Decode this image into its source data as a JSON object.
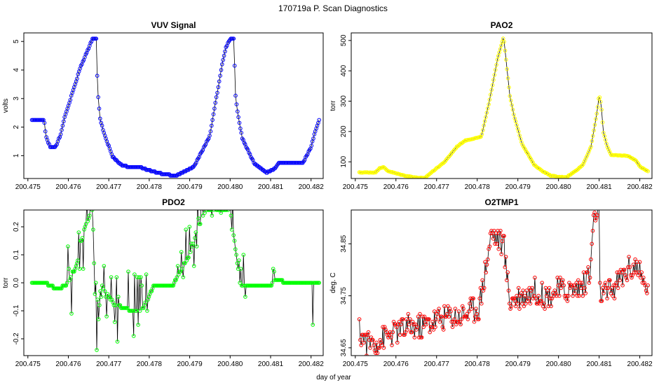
{
  "figure": {
    "title": "170719a   P. Scan Diagnostics",
    "xlabel": "day of year"
  },
  "chart_data": [
    {
      "type": "line",
      "title": "VUV Signal",
      "xlabel": "",
      "ylabel": "volts",
      "xlim": [
        200.4749,
        200.4823
      ],
      "ylim": [
        0.2,
        5.3
      ],
      "xticks": [
        "200.475",
        "200.476",
        "200.477",
        "200.478",
        "200.479",
        "200.480",
        "200.481",
        "200.482"
      ],
      "xtick_values": [
        200.475,
        200.476,
        200.477,
        200.478,
        200.479,
        200.48,
        200.481,
        200.482
      ],
      "yticks": [
        "1",
        "2",
        "3",
        "4",
        "5"
      ],
      "ytick_values": [
        1,
        2,
        3,
        4,
        5
      ],
      "marker_color": "#0000ff",
      "n_points": 300,
      "keypoints": [
        [
          200.4751,
          2.27
        ],
        [
          200.4754,
          2.27
        ],
        [
          200.47545,
          1.65
        ],
        [
          200.47555,
          1.3
        ],
        [
          200.47568,
          1.3
        ],
        [
          200.4758,
          1.7
        ],
        [
          200.4759,
          2.3
        ],
        [
          200.4763,
          4.1
        ],
        [
          200.4766,
          5.1
        ],
        [
          200.4767,
          5.1
        ],
        [
          200.47672,
          3.35
        ],
        [
          200.47678,
          2.33
        ],
        [
          200.4769,
          1.7
        ],
        [
          200.4771,
          0.95
        ],
        [
          200.4773,
          0.68
        ],
        [
          200.4775,
          0.6
        ],
        [
          200.4778,
          0.58
        ],
        [
          200.4782,
          0.4
        ],
        [
          200.47865,
          0.29
        ],
        [
          200.4791,
          0.6
        ],
        [
          200.4795,
          1.7
        ],
        [
          200.4798,
          4.2
        ],
        [
          200.4799,
          4.8
        ],
        [
          200.48,
          5.1
        ],
        [
          200.4801,
          5.1
        ],
        [
          200.48012,
          3.25
        ],
        [
          200.48018,
          2.55
        ],
        [
          200.4803,
          1.6
        ],
        [
          200.4806,
          0.72
        ],
        [
          200.4809,
          0.4
        ],
        [
          200.4811,
          0.55
        ],
        [
          200.4812,
          0.75
        ],
        [
          200.4815,
          0.75
        ],
        [
          200.4818,
          0.75
        ],
        [
          200.482,
          1.3
        ],
        [
          200.4821,
          1.85
        ],
        [
          200.4822,
          2.25
        ]
      ]
    },
    {
      "type": "line",
      "title": "PAO2",
      "xlabel": "",
      "ylabel": "torr",
      "xlim": [
        200.4749,
        200.4823
      ],
      "ylim": [
        45,
        525
      ],
      "xticks": [
        "200.475",
        "200.476",
        "200.477",
        "200.478",
        "200.479",
        "200.480",
        "200.481",
        "200.482"
      ],
      "xtick_values": [
        200.475,
        200.476,
        200.477,
        200.478,
        200.479,
        200.48,
        200.481,
        200.482
      ],
      "yticks": [
        "100",
        "200",
        "300",
        "400",
        "500"
      ],
      "ytick_values": [
        100,
        200,
        300,
        400,
        500
      ],
      "marker_color": "#ffff00",
      "n_points": 300,
      "keypoints": [
        [
          200.4751,
          65
        ],
        [
          200.4755,
          65
        ],
        [
          200.4756,
          80
        ],
        [
          200.4757,
          82
        ],
        [
          200.4758,
          70
        ],
        [
          200.476,
          62
        ],
        [
          200.4762,
          55
        ],
        [
          200.4765,
          48
        ],
        [
          200.4767,
          46
        ],
        [
          200.4769,
          68
        ],
        [
          200.4772,
          100
        ],
        [
          200.4775,
          150
        ],
        [
          200.4777,
          170
        ],
        [
          200.47795,
          178
        ],
        [
          200.4781,
          182
        ],
        [
          200.4783,
          300
        ],
        [
          200.4785,
          440
        ],
        [
          200.47865,
          512
        ],
        [
          200.4788,
          320
        ],
        [
          200.4789,
          255
        ],
        [
          200.4791,
          160
        ],
        [
          200.4794,
          90
        ],
        [
          200.4796,
          70
        ],
        [
          200.4798,
          55
        ],
        [
          200.48,
          50
        ],
        [
          200.4802,
          50
        ],
        [
          200.4804,
          68
        ],
        [
          200.4806,
          90
        ],
        [
          200.4808,
          150
        ],
        [
          200.48095,
          265
        ],
        [
          200.481,
          320
        ],
        [
          200.48105,
          290
        ],
        [
          200.4811,
          200
        ],
        [
          200.4812,
          150
        ],
        [
          200.4813,
          122
        ],
        [
          200.4817,
          120
        ],
        [
          200.4819,
          105
        ],
        [
          200.482,
          85
        ],
        [
          200.4822,
          68
        ]
      ]
    },
    {
      "type": "line",
      "title": "PDO2",
      "xlabel": "",
      "ylabel": "torr",
      "xlim": [
        200.4749,
        200.4823
      ],
      "ylim": [
        -0.26,
        0.26
      ],
      "xticks": [
        "200.475",
        "200.476",
        "200.477",
        "200.478",
        "200.479",
        "200.480",
        "200.481",
        "200.482"
      ],
      "xtick_values": [
        200.475,
        200.476,
        200.477,
        200.478,
        200.479,
        200.48,
        200.481,
        200.482
      ],
      "yticks": [
        "-0.2",
        "-0.1",
        "0.0",
        "0.1",
        "0.2"
      ],
      "ytick_values": [
        -0.2,
        -0.1,
        0.0,
        0.1,
        0.2
      ],
      "marker_color": "#00ff00",
      "n_points": 320,
      "keypoints": [
        [
          200.4751,
          -0.005
        ],
        [
          200.4755,
          -0.005
        ],
        [
          200.4757,
          -0.02
        ],
        [
          200.4758,
          -0.02
        ],
        [
          200.476,
          0.0
        ],
        [
          200.4762,
          0.06
        ],
        [
          200.4764,
          0.2
        ],
        [
          200.4766,
          0.26
        ],
        [
          200.47665,
          0.0
        ],
        [
          200.4767,
          -0.25
        ],
        [
          200.4768,
          -0.005
        ],
        [
          200.477,
          -0.05
        ],
        [
          200.4772,
          -0.08
        ],
        [
          200.4774,
          -0.09
        ],
        [
          200.4776,
          -0.1
        ],
        [
          200.4778,
          -0.1
        ],
        [
          200.478,
          -0.05
        ],
        [
          200.4781,
          -0.01
        ],
        [
          200.4785,
          -0.01
        ],
        [
          200.4786,
          -0.005
        ],
        [
          200.4788,
          0.05
        ],
        [
          200.479,
          0.1
        ],
        [
          200.4792,
          0.2
        ],
        [
          200.4794,
          0.26
        ],
        [
          200.4796,
          0.26
        ],
        [
          200.4798,
          0.26
        ],
        [
          200.48,
          0.26
        ],
        [
          200.48025,
          -0.005
        ],
        [
          200.4805,
          -0.01
        ],
        [
          200.4808,
          -0.01
        ],
        [
          200.481,
          -0.01
        ],
        [
          200.4811,
          0.01
        ],
        [
          200.4812,
          0.01
        ],
        [
          200.4815,
          -0.005
        ],
        [
          200.4819,
          -0.005
        ],
        [
          200.4821,
          0.0
        ],
        [
          200.4822,
          -0.005
        ]
      ]
    },
    {
      "type": "line",
      "title": "O2TMP1",
      "xlabel": "",
      "ylabel": "deg. C",
      "xlim": [
        200.4749,
        200.4823
      ],
      "ylim": [
        34.635,
        34.915
      ],
      "xticks": [
        "200.475",
        "200.476",
        "200.477",
        "200.478",
        "200.479",
        "200.480",
        "200.481",
        "200.482"
      ],
      "xtick_values": [
        200.475,
        200.476,
        200.477,
        200.478,
        200.479,
        200.48,
        200.481,
        200.482
      ],
      "yticks": [
        "34.65",
        "34.75",
        "34.85"
      ],
      "ytick_values": [
        34.65,
        34.75,
        34.85
      ],
      "marker_color": "#ff0000",
      "n_points": 320,
      "keypoints": [
        [
          200.4751,
          34.68
        ],
        [
          200.4753,
          34.66
        ],
        [
          200.4755,
          34.66
        ],
        [
          200.4757,
          34.67
        ],
        [
          200.476,
          34.68
        ],
        [
          200.4763,
          34.69
        ],
        [
          200.4766,
          34.69
        ],
        [
          200.4769,
          34.7
        ],
        [
          200.4772,
          34.71
        ],
        [
          200.4775,
          34.71
        ],
        [
          200.4778,
          34.72
        ],
        [
          200.47805,
          34.73
        ],
        [
          200.4782,
          34.8
        ],
        [
          200.47835,
          34.87
        ],
        [
          200.4785,
          34.86
        ],
        [
          200.47865,
          34.85
        ],
        [
          200.4788,
          34.74
        ],
        [
          200.4791,
          34.75
        ],
        [
          200.4794,
          34.76
        ],
        [
          200.4797,
          34.75
        ],
        [
          200.48,
          34.76
        ],
        [
          200.4803,
          34.76
        ],
        [
          200.4806,
          34.77
        ],
        [
          200.4808,
          34.8
        ],
        [
          200.48085,
          34.9
        ],
        [
          200.481,
          34.9
        ],
        [
          200.48102,
          34.76
        ],
        [
          200.4811,
          34.75
        ],
        [
          200.4813,
          34.76
        ],
        [
          200.4815,
          34.78
        ],
        [
          200.4817,
          34.8
        ],
        [
          200.4819,
          34.81
        ],
        [
          200.4821,
          34.77
        ],
        [
          200.4822,
          34.765
        ]
      ]
    }
  ]
}
